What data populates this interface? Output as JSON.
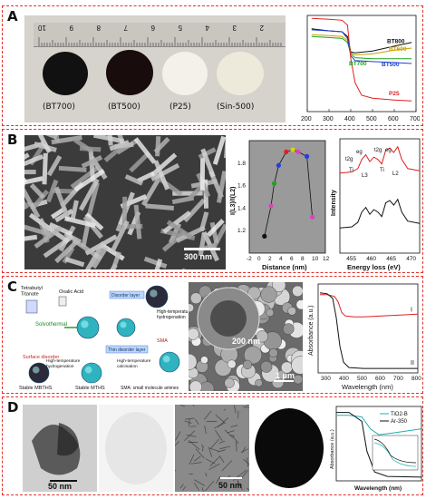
{
  "panels": {
    "a": {
      "label": "A",
      "samples": [
        "(BT700)",
        "(BT500)",
        "(P25)",
        "(Sin-500)"
      ],
      "ruler_numbers": [
        "10",
        "9",
        "8",
        "7",
        "6",
        "5",
        "4",
        "3",
        "2"
      ]
    },
    "b": {
      "label": "B",
      "scale": "300 nm"
    },
    "c": {
      "label": "C",
      "scale_inset": "200 nm",
      "scale_main": "1 μm",
      "scheme": {
        "tetrabutyl": "Tetrabutyl\nTitanate",
        "oxalic": "Oxalic Acid",
        "solvothermal": "Solvothermal",
        "disorder_top": "Disorder layer",
        "thin_disorder": "Thin disorder layer",
        "high_temp_hydro": "High-temperature\nhydrogenation",
        "sma_short": "SMA",
        "surface_disorder": "Surface disorder",
        "high_temp_calc": "High-temperature\ncalcination",
        "stable_mbths": "Stable MBTHS",
        "stable_mths": "Stable MTHS",
        "sma_long": "SMA: small molecule amines",
        "hydro2": "High-temperature\nhydrogenation"
      }
    },
    "d": {
      "label": "D",
      "scale1": "50 nm",
      "scale2": "50 nm"
    }
  },
  "chart_data": [
    {
      "type": "line",
      "panel": "A",
      "xlabel": "",
      "ylabel": "",
      "xlim": [
        200,
        700
      ],
      "xticks": [
        200,
        300,
        400,
        500,
        600,
        700
      ],
      "series": [
        {
          "name": "BT800",
          "color": "#111111",
          "x": [
            220,
            300,
            360,
            385,
            400,
            420,
            500,
            600,
            680
          ],
          "y": [
            0.86,
            0.84,
            0.83,
            0.78,
            0.62,
            0.61,
            0.63,
            0.68,
            0.72
          ]
        },
        {
          "name": "BT600",
          "color": "#c8a000",
          "x": [
            220,
            300,
            360,
            385,
            400,
            420,
            500,
            600,
            680
          ],
          "y": [
            0.8,
            0.79,
            0.78,
            0.74,
            0.61,
            0.59,
            0.6,
            0.64,
            0.66
          ]
        },
        {
          "name": "BT700",
          "color": "#1aa31a",
          "x": [
            220,
            300,
            360,
            385,
            400,
            420,
            500,
            600,
            680
          ],
          "y": [
            0.78,
            0.77,
            0.76,
            0.72,
            0.6,
            0.56,
            0.55,
            0.55,
            0.55
          ]
        },
        {
          "name": "BT500",
          "color": "#2040d0",
          "x": [
            220,
            300,
            360,
            385,
            400,
            420,
            500,
            600,
            680
          ],
          "y": [
            0.85,
            0.84,
            0.83,
            0.76,
            0.58,
            0.53,
            0.52,
            0.51,
            0.5
          ]
        },
        {
          "name": "P25",
          "color": "#e02020",
          "x": [
            220,
            300,
            360,
            385,
            400,
            420,
            450,
            500,
            600,
            680
          ],
          "y": [
            0.97,
            0.96,
            0.95,
            0.9,
            0.55,
            0.3,
            0.17,
            0.14,
            0.12,
            0.11
          ]
        }
      ]
    },
    {
      "type": "scatter",
      "panel": "B",
      "xlabel": "Distance (nm)",
      "ylabel": "I(L3)/I(L2)",
      "xlim": [
        -2,
        12
      ],
      "ylim": [
        1.0,
        2.0
      ],
      "xticks": [
        -2,
        0,
        2,
        4,
        6,
        8,
        10,
        12
      ],
      "yticks": [
        1.2,
        1.4,
        1.6,
        1.8
      ],
      "points": [
        {
          "x": 0.8,
          "y": 1.15,
          "color": "#111111"
        },
        {
          "x": 2.0,
          "y": 1.42,
          "color": "#e040c0"
        },
        {
          "x": 2.6,
          "y": 1.62,
          "color": "#20a020"
        },
        {
          "x": 3.4,
          "y": 1.78,
          "color": "#2040e0"
        },
        {
          "x": 4.8,
          "y": 1.9,
          "color": "#e02020"
        },
        {
          "x": 6.0,
          "y": 1.92,
          "color": "#e0d000"
        },
        {
          "x": 7.0,
          "y": 1.9,
          "color": "#e040c0"
        },
        {
          "x": 8.6,
          "y": 1.86,
          "color": "#2040e0"
        },
        {
          "x": 9.6,
          "y": 1.32,
          "color": "#e040c0"
        }
      ]
    },
    {
      "type": "line",
      "panel": "B",
      "xlabel": "Energy loss (eV)",
      "ylabel": "Intensity",
      "xlim": [
        452,
        472
      ],
      "xticks": [
        455,
        460,
        465,
        470
      ],
      "annotations": [
        "t2g",
        "eg",
        "t2g",
        "eg",
        "Ti",
        "L3",
        "Ti",
        "L2"
      ],
      "series": [
        {
          "name": "red",
          "color": "#e02020",
          "x": [
            452,
            455,
            456.5,
            457.5,
            458.5,
            459.5,
            460.5,
            461.5,
            462.5,
            463.5,
            464.5,
            465.5,
            466.5,
            467.5,
            469,
            472
          ],
          "y": [
            0.7,
            0.71,
            0.74,
            0.82,
            0.86,
            0.8,
            0.84,
            0.82,
            0.78,
            0.9,
            0.92,
            0.88,
            0.93,
            0.82,
            0.74,
            0.72
          ]
        },
        {
          "name": "black",
          "color": "#111111",
          "x": [
            452,
            455,
            456.5,
            457.5,
            458.5,
            459.5,
            460.5,
            461.5,
            462.5,
            463.5,
            464.5,
            465.5,
            466.5,
            467.5,
            469,
            472
          ],
          "y": [
            0.22,
            0.23,
            0.27,
            0.36,
            0.4,
            0.34,
            0.38,
            0.36,
            0.32,
            0.44,
            0.46,
            0.42,
            0.47,
            0.36,
            0.28,
            0.26
          ]
        }
      ]
    },
    {
      "type": "line",
      "panel": "C",
      "xlabel": "Wavelength (nm)",
      "ylabel": "Absorbance (a.u.)",
      "xlim": [
        250,
        800
      ],
      "xticks": [
        300,
        400,
        500,
        600,
        700,
        800
      ],
      "series_labels": [
        "I",
        "II"
      ],
      "series": [
        {
          "name": "I",
          "color": "#e02020",
          "x": [
            260,
            300,
            340,
            360,
            380,
            400,
            450,
            500,
            600,
            700,
            800
          ],
          "y": [
            0.88,
            0.88,
            0.86,
            0.8,
            0.68,
            0.64,
            0.63,
            0.63,
            0.64,
            0.65,
            0.66
          ]
        },
        {
          "name": "II",
          "color": "#111111",
          "x": [
            260,
            300,
            330,
            350,
            370,
            390,
            420,
            500,
            600,
            700,
            800
          ],
          "y": [
            0.9,
            0.89,
            0.84,
            0.62,
            0.3,
            0.12,
            0.06,
            0.05,
            0.05,
            0.05,
            0.05
          ]
        }
      ]
    },
    {
      "type": "line",
      "panel": "D",
      "xlabel": "Wavelength (nm)",
      "ylabel": "Absorbance (a.u.)",
      "legend": [
        "TiO2-B",
        "Ar-350"
      ],
      "series": [
        {
          "name": "TiO2-B",
          "color": "#20b0b0",
          "x": [
            0,
            0.15,
            0.3,
            0.4,
            0.5,
            0.7,
            1.0
          ],
          "y": [
            0.88,
            0.88,
            0.86,
            0.7,
            0.62,
            0.65,
            0.7
          ]
        },
        {
          "name": "Ar-350",
          "color": "#111111",
          "x": [
            0,
            0.15,
            0.3,
            0.36,
            0.45,
            0.6,
            1.0
          ],
          "y": [
            0.92,
            0.92,
            0.8,
            0.4,
            0.12,
            0.06,
            0.05
          ]
        }
      ]
    }
  ]
}
